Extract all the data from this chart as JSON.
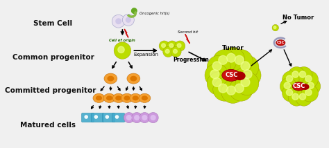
{
  "bg_color": "#f0f0f0",
  "labels": {
    "stem_cell": "Stem Cell",
    "common_prog": "Common progenitor",
    "committed_prog": "Committed progenitor",
    "matured": "Matured cells",
    "expansion": "Expansion",
    "progression": "Progression",
    "tumor": "Tumor",
    "no_tumor": "No Tumor",
    "csc": "CSC",
    "oncogenic": "Oncogenic hit(s)",
    "cell_of_origin": "Cell of origin",
    "second_hit": "Second hit"
  },
  "colors": {
    "yg": "#BBDD00",
    "yg_bright": "#CCEE11",
    "yg_inner": "#EEFF88",
    "orange": "#F5A030",
    "orange_inner": "#DD7700",
    "red_csc": "#CC1111",
    "red_csc2": "#AA0000",
    "lavender": "#CC99DD",
    "lavender_inner": "#DDBBEE",
    "blue_cell": "#44AACC",
    "stem_pale": "#E8E0F0",
    "stem_pale2": "#D0C8E8",
    "stem_green": "#88BB44",
    "stem_green2": "#66AA22",
    "arrow_col": "#111111",
    "red_bolt": "#CC1111",
    "text_dark": "#111111"
  }
}
